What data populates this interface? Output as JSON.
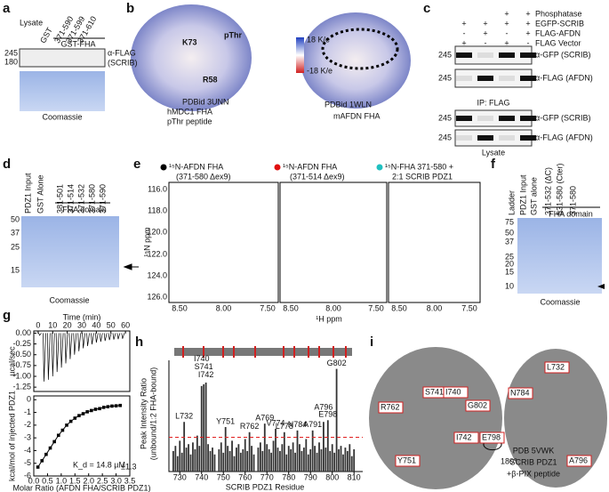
{
  "panel_labels": [
    "a",
    "b",
    "c",
    "d",
    "e",
    "f",
    "g",
    "h",
    "i"
  ],
  "a": {
    "lanes": [
      "Lysate",
      "GST",
      "371-590",
      "371-599",
      "371-610"
    ],
    "group": "GST-FHA",
    "markers": [
      "245",
      "180"
    ],
    "blot": [
      "α-FLAG",
      "(SCRIB)"
    ],
    "stain": "Coomassie"
  },
  "b": {
    "left": [
      "PDBid 3UNN",
      "hMDC1 FHA",
      "pThr peptide"
    ],
    "residues": [
      "K73",
      "pThr",
      "R58"
    ],
    "scale": [
      "18 K/e",
      "-18 K/e"
    ],
    "right": [
      "PDBid 1WLN",
      "mAFDN FHA"
    ]
  },
  "c": {
    "conditions": [
      "Phosphatase",
      "EGFP-SCRIB",
      "FLAG-AFDN",
      "FLAG Vector"
    ],
    "signs": [
      [
        "+",
        "+"
      ],
      [
        "+",
        "+",
        "+",
        "+"
      ],
      [
        "-",
        "+",
        "-",
        "+"
      ],
      [
        "+",
        "-",
        "+",
        "-"
      ]
    ],
    "marker": "245",
    "blots": [
      "α-GFP (SCRIB)",
      "α-FLAG (AFDN)",
      "α-GFP (SCRIB)",
      "α-FLAG (AFDN)"
    ],
    "ip": "IP: FLAG",
    "lysate": "Lysate"
  },
  "d": {
    "lanes": [
      "PDZ1 Input",
      "GST Alone",
      "381-501",
      "371-514",
      "371-532",
      "371-580",
      "371-590"
    ],
    "group": "FHA domain",
    "markers": [
      "50",
      "37",
      "25",
      "15"
    ],
    "stain": "Coomassie"
  },
  "e": {
    "legends": [
      [
        "¹⁵N-AFDN FHA",
        "(371-580 Δex9)"
      ],
      [
        "¹⁵N-AFDN FHA",
        "(371-514 Δex9)"
      ],
      [
        "¹⁵N-FHA 371-580 +",
        "2:1 SCRIB PDZ1"
      ]
    ],
    "yticks": [
      "116.0",
      "118.0",
      "120.0",
      "122.0",
      "124.0",
      "126.0"
    ],
    "xticks": [
      "8.50",
      "8.00",
      "7.50"
    ],
    "xlabel": "¹H ppm",
    "ylabel": "¹⁵N ppm"
  },
  "f": {
    "lanes": [
      "Ladder",
      "PDZ1 Input",
      "GST alone",
      "371-532 (ΔC)",
      "531-580 (Cter)",
      "371-580"
    ],
    "group": "FHA domain",
    "markers": [
      "75",
      "50",
      "37",
      "25",
      "20",
      "15",
      "10"
    ],
    "stain": "Coomassie"
  },
  "g": {
    "top": {
      "xlabel": "Time (min)",
      "ylabel": "µcal/sec",
      "xlim": [
        -3,
        63
      ],
      "ylim": [
        -1.35,
        0.05
      ],
      "xticks": [
        0,
        10,
        20,
        30,
        40,
        50,
        60
      ],
      "yticks": [
        {
          "value": 0,
          "label": "0.00"
        },
        {
          "value": -0.25,
          "label": "-0.25"
        },
        {
          "value": -0.5,
          "label": "-0.50"
        },
        {
          "value": -0.75,
          "label": "-0.75"
        },
        {
          "value": -1,
          "label": "-1.00"
        },
        {
          "value": -1.25,
          "label": "-1.25"
        }
      ],
      "times": [
        1,
        4,
        7,
        10,
        13,
        16,
        19,
        22,
        25,
        28,
        31,
        34,
        37,
        40,
        43,
        46,
        49,
        52,
        55,
        58
      ],
      "values": [
        -0.05,
        -1.12,
        -1.08,
        -1,
        -0.9,
        -0.8,
        -0.7,
        -0.6,
        -0.5,
        -0.42,
        -0.35,
        -0.3,
        -0.26,
        -0.22,
        -0.2,
        -0.18,
        -0.16,
        -0.15,
        -0.14,
        -0.13
      ]
    },
    "bottom": {
      "xlabel": "Molar Ratio (AFDN FHA/SCRIB PDZ1)",
      "ylabel": "kcal/mol of injected PDZ1",
      "xlim": [
        0,
        3.5
      ],
      "ylim": [
        -6,
        0.3
      ],
      "xticks": [
        {
          "value": 0,
          "label": "0.0"
        },
        {
          "value": 0.5,
          "label": "0.5"
        },
        {
          "value": 1,
          "label": "1.0"
        },
        {
          "value": 1.5,
          "label": "1.5"
        },
        {
          "value": 2,
          "label": "2.0"
        },
        {
          "value": 2.5,
          "label": "2.5"
        },
        {
          "value": 3,
          "label": "3.0"
        },
        {
          "value": 3.5,
          "label": "3.5"
        }
      ],
      "yticks": [
        -6,
        -5,
        -4,
        -3,
        -2,
        -1,
        0
      ],
      "x": [
        0.15,
        0.3,
        0.45,
        0.6,
        0.75,
        0.9,
        1.05,
        1.2,
        1.35,
        1.5,
        1.65,
        1.8,
        1.95,
        2.1,
        2.25,
        2.4,
        2.55,
        2.7,
        2.85,
        3,
        3.15
      ],
      "values": [
        -5.3,
        -4.8,
        -4.3,
        -3.8,
        -3.3,
        -2.8,
        -2.4,
        -2,
        -1.7,
        -1.45,
        -1.25,
        -1.1,
        -0.95,
        -0.85,
        -0.75,
        -0.7,
        -0.6,
        -0.55,
        -0.5,
        -0.48,
        -0.45
      ],
      "kd": "K_d = 14.8 µM",
      "kd_error": "±1.3"
    }
  },
  "h": {
    "ylabel": [
      "Peak Intensity Ratio",
      "(unbound/1:2 FHA-bound)"
    ],
    "xlabel": "SCRIB PDZ1 Residue",
    "xlim": [
      725,
      814
    ],
    "ylim": [
      0,
      6.5
    ],
    "xticks": [
      730,
      740,
      750,
      760,
      770,
      780,
      790,
      800,
      810
    ],
    "threshold": 2,
    "color": "#333333",
    "residues": [
      727,
      728,
      729,
      730,
      731,
      732,
      733,
      734,
      735,
      736,
      737,
      738,
      739,
      740,
      741,
      742,
      743,
      744,
      745,
      746,
      748,
      749,
      750,
      751,
      752,
      753,
      754,
      755,
      756,
      757,
      758,
      759,
      760,
      761,
      762,
      763,
      764,
      766,
      767,
      768,
      769,
      770,
      771,
      772,
      773,
      774,
      775,
      776,
      777,
      778,
      779,
      780,
      781,
      782,
      783,
      784,
      785,
      786,
      787,
      788,
      789,
      790,
      791,
      792,
      793,
      794,
      795,
      796,
      797,
      798,
      799,
      800,
      801,
      802,
      803,
      804,
      805,
      806,
      807,
      808,
      809,
      810
    ],
    "values": [
      1.2,
      1.5,
      0.9,
      1.8,
      1.1,
      2.9,
      1.4,
      1.6,
      1.0,
      1.7,
      1.3,
      2.1,
      1.5,
      5.0,
      5.1,
      5.2,
      1.6,
      1.2,
      1.4,
      1.0,
      1.3,
      1.7,
      1.1,
      2.6,
      1.5,
      1.2,
      1.8,
      0.9,
      1.4,
      1.6,
      1.1,
      1.3,
      1.9,
      1.2,
      2.3,
      1.5,
      1.0,
      1.4,
      1.7,
      1.2,
      2.8,
      1.6,
      1.3,
      1.1,
      1.8,
      2.5,
      1.4,
      1.2,
      1.6,
      2.3,
      1.0,
      1.5,
      1.3,
      1.7,
      1.1,
      2.4,
      1.6,
      1.2,
      1.4,
      1.9,
      1.0,
      1.3,
      2.4,
      1.5,
      1.1,
      1.7,
      1.3,
      2.9,
      1.4,
      3.0,
      1.2,
      1.6,
      1.1,
      6.0,
      1.3,
      1.5,
      1.0,
      1.4,
      1.2,
      1.6,
      0.9,
      1.3
    ],
    "annotations": [
      {
        "text": "L732",
        "x": 732
      },
      {
        "text": "I740",
        "x": 740
      },
      {
        "text": "S741",
        "x": 741
      },
      {
        "text": "I742",
        "x": 742
      },
      {
        "text": "Y751",
        "x": 751
      },
      {
        "text": "R762",
        "x": 762
      },
      {
        "text": "A769",
        "x": 769
      },
      {
        "text": "V774",
        "x": 774
      },
      {
        "text": "L778",
        "x": 778
      },
      {
        "text": "N784",
        "x": 784
      },
      {
        "text": "A791",
        "x": 791
      },
      {
        "text": "A796",
        "x": 796
      },
      {
        "text": "E798",
        "x": 798
      },
      {
        "text": "G802",
        "x": 802
      }
    ]
  },
  "i": {
    "residues": [
      "L732",
      "R762",
      "S741",
      "I740",
      "G802",
      "N784",
      "Y751",
      "I742",
      "E798",
      "A796"
    ],
    "rotation": "180°",
    "caption": [
      "PDB 5VWK",
      "SCRIB PDZ1",
      "+β-PIX peptide"
    ]
  }
}
